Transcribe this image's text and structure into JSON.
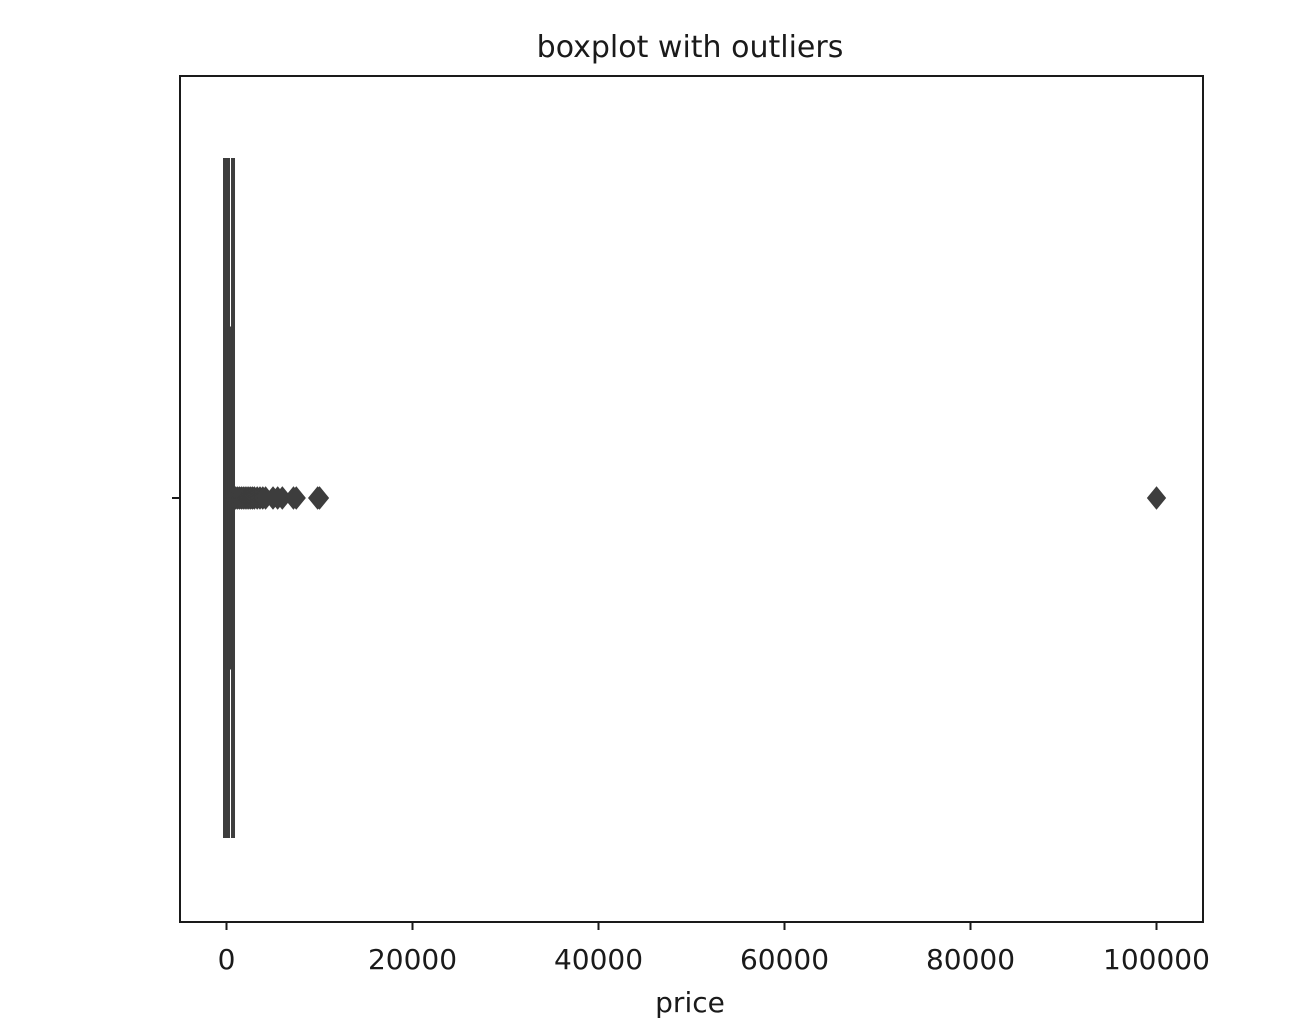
{
  "chart_data": {
    "type": "boxplot",
    "title": "boxplot with outliers",
    "xlabel": "price",
    "ylabel": "",
    "xlim": [
      -5000,
      105000
    ],
    "x_ticks": [
      0,
      20000,
      40000,
      60000,
      80000,
      100000
    ],
    "x_tick_labels": [
      "0",
      "20000",
      "40000",
      "60000",
      "80000",
      "100000"
    ],
    "orientation": "horizontal",
    "grid": false,
    "legend": false,
    "box_color": "#3d3d3d",
    "outlier_color": "#3d3d3d",
    "box": {
      "whisker_low": 0,
      "q1": 100,
      "median": 200,
      "q3": 400,
      "whisker_high": 700
    },
    "outliers": [
      800,
      900,
      1000,
      1200,
      1400,
      1600,
      1800,
      2000,
      2200,
      2400,
      2600,
      2800,
      3000,
      3300,
      3600,
      3900,
      4200,
      5000,
      5500,
      6000,
      7200,
      7500,
      9800,
      10000,
      100000
    ]
  }
}
